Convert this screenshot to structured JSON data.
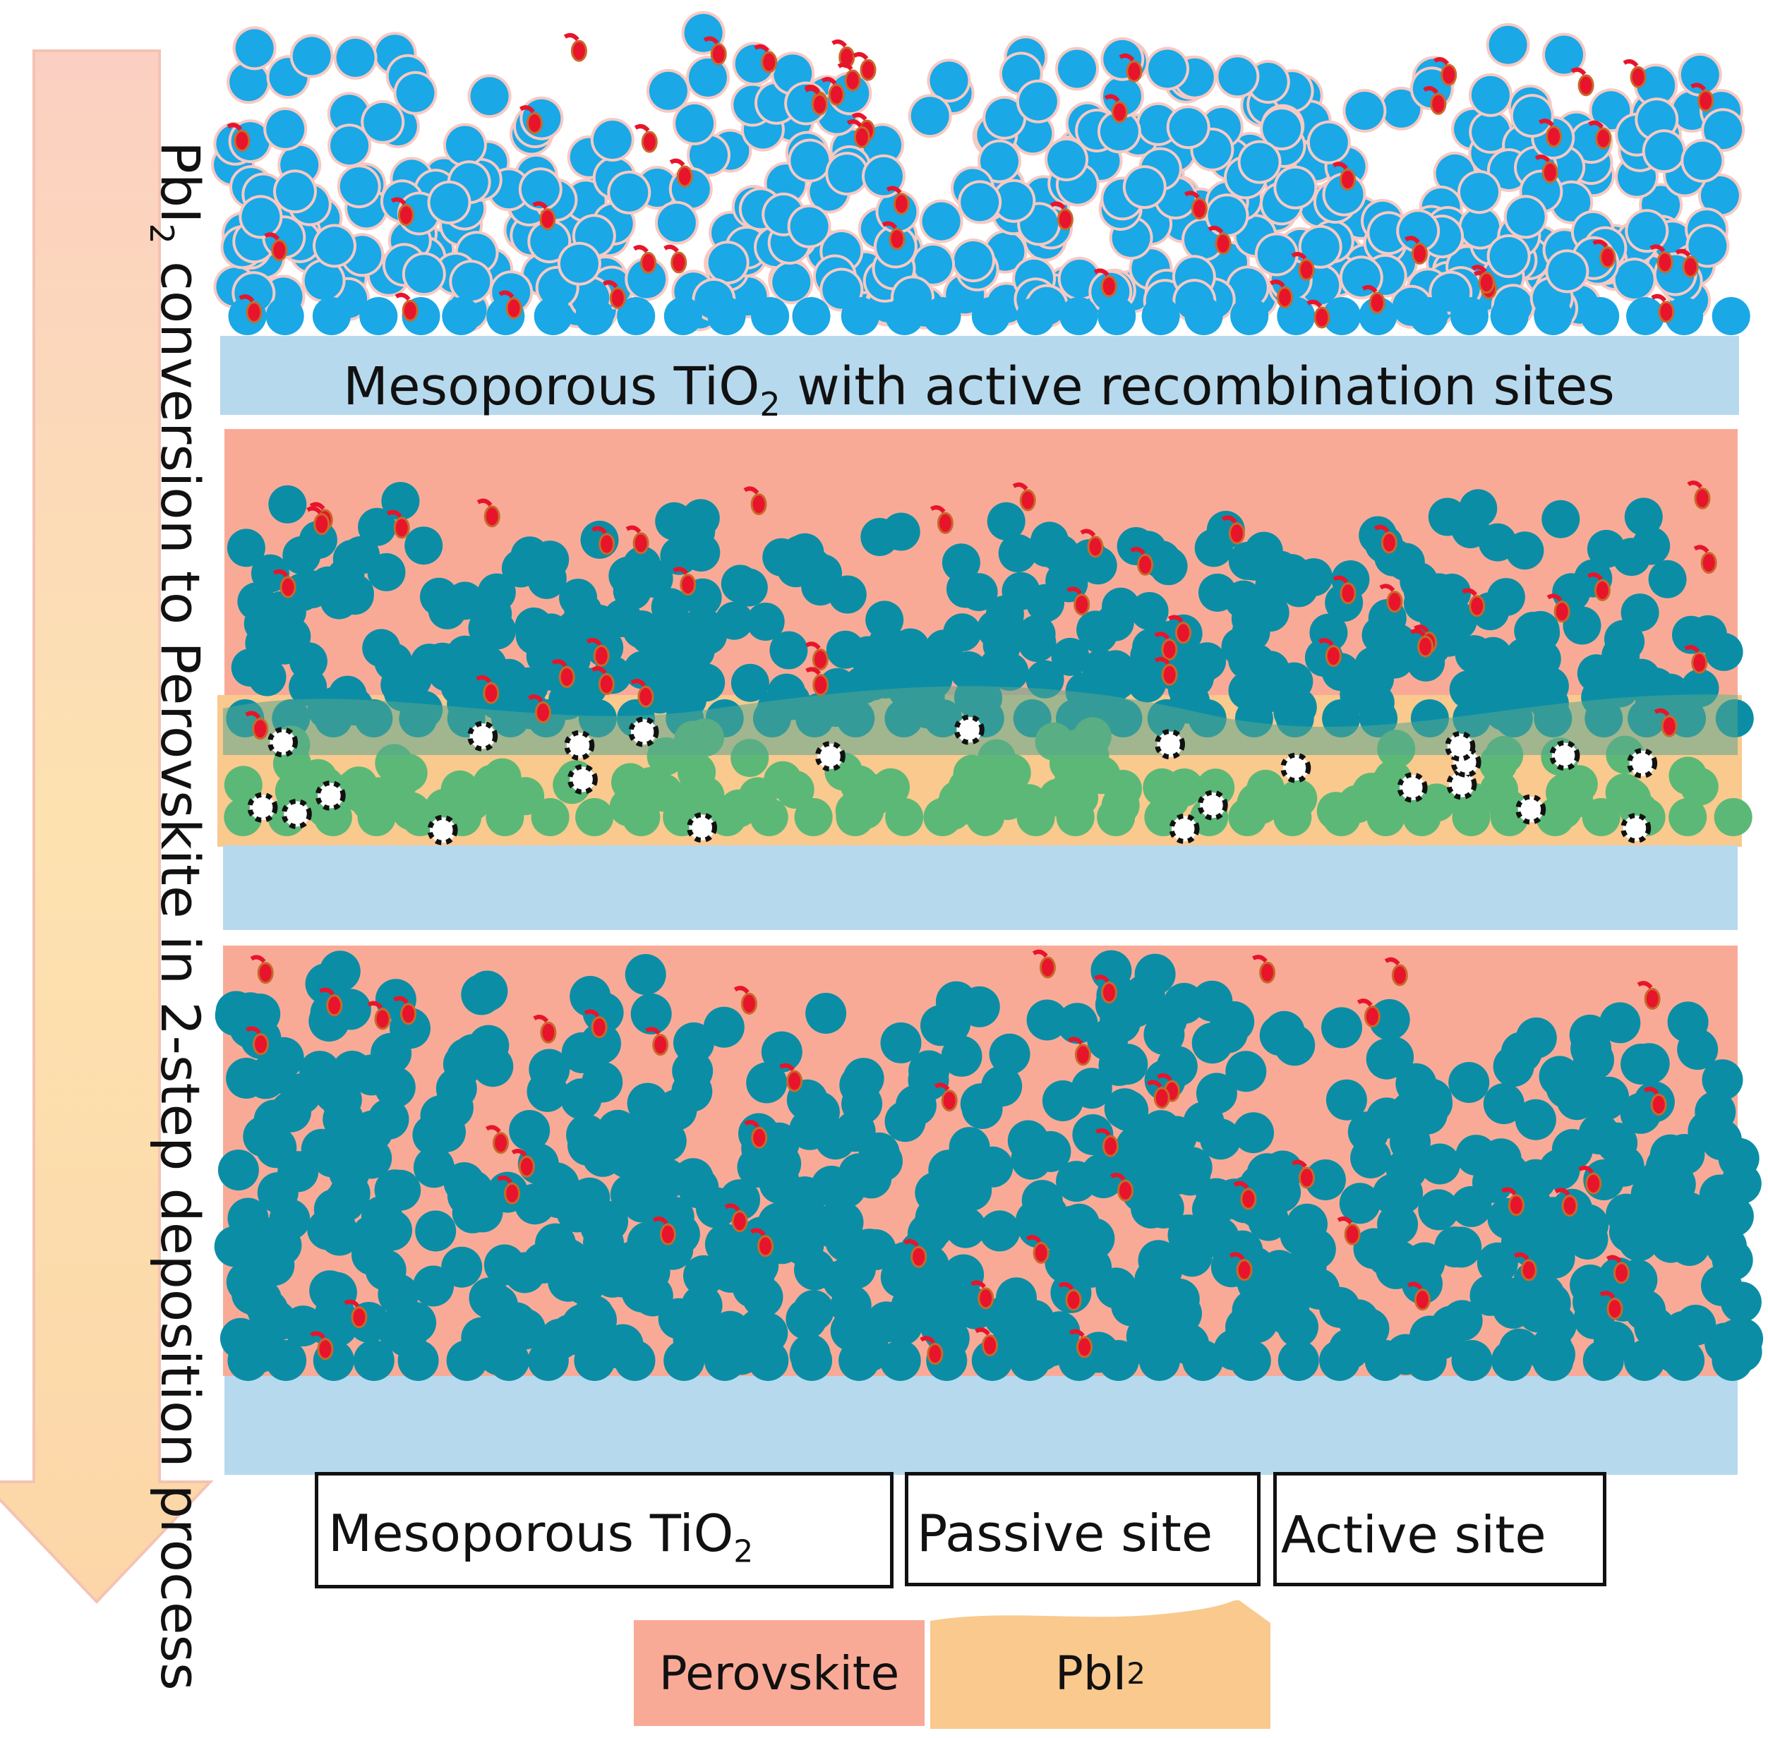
{
  "arrow": {
    "text": "PbI",
    "subscript": "2",
    "text_after": " conversion to Perovskite in 2-step deposition process",
    "color_start": "#fde7a8",
    "color_end": "#fbc7b8"
  },
  "panels": {
    "panel1_caption_prefix": "Mesoporous TiO",
    "panel1_caption_sub": "2",
    "panel1_caption_suffix": " with active recombination sites"
  },
  "legend": {
    "tio2_label": "Mesoporous TiO",
    "tio2_sub": "2",
    "passive_label": "Passive site",
    "active_label": "Active site",
    "perovskite_label": "Perovskite",
    "pbi2_label": "PbI",
    "pbi2_sub": "2"
  },
  "colors": {
    "tio2_bright": "#1aa8e6",
    "tio2_dark": "#0b8ea5",
    "tio2_green": "#5cb877",
    "substrate": "#b7d9ee",
    "perovskite": "#f9aa97",
    "pbi2": "#f9c98e",
    "active_site": "#e8142b"
  }
}
